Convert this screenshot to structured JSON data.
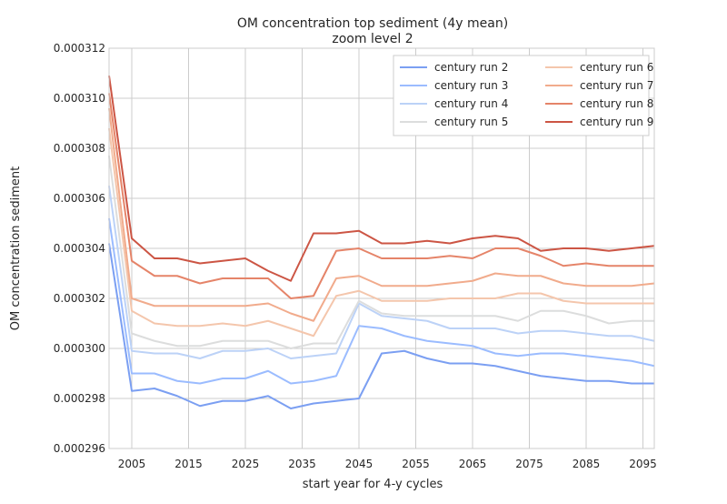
{
  "chart_data": {
    "type": "line",
    "title": "OM concentration top sediment (4y mean)",
    "subtitle": "zoom level 2",
    "xlabel": "start year for 4-y cycles",
    "ylabel": "OM concentration sediment",
    "xlim": [
      2001,
      2097
    ],
    "ylim": [
      0.000296,
      0.000312
    ],
    "x_ticks": [
      2005,
      2015,
      2025,
      2035,
      2045,
      2055,
      2065,
      2075,
      2085,
      2095
    ],
    "x_tick_labels": [
      "2005",
      "2015",
      "2025",
      "2035",
      "2045",
      "2055",
      "2065",
      "2075",
      "2085",
      "2095"
    ],
    "y_ticks": [
      0.000296,
      0.000298,
      0.0003,
      0.000302,
      0.000304,
      0.000306,
      0.000308,
      0.00031,
      0.000312
    ],
    "y_tick_labels": [
      "0.000296",
      "0.000298",
      "0.000300",
      "0.000302",
      "0.000304",
      "0.000306",
      "0.000308",
      "0.000310",
      "0.000312"
    ],
    "grid": true,
    "legend_position": "top-right",
    "x": [
      2001,
      2005,
      2009,
      2013,
      2017,
      2021,
      2025,
      2029,
      2033,
      2037,
      2041,
      2045,
      2049,
      2053,
      2057,
      2061,
      2065,
      2069,
      2073,
      2077,
      2081,
      2085,
      2089,
      2093,
      2097
    ],
    "series": [
      {
        "name": "century run 2",
        "color": "#7b9ff2",
        "values": [
          0.0003042,
          0.0002983,
          0.0002984,
          0.0002981,
          0.0002977,
          0.0002979,
          0.0002979,
          0.0002981,
          0.0002976,
          0.0002978,
          0.0002979,
          0.000298,
          0.0002998,
          0.0002999,
          0.0002996,
          0.0002994,
          0.0002994,
          0.0002993,
          0.0002991,
          0.0002989,
          0.0002988,
          0.0002987,
          0.0002987,
          0.0002986,
          0.0002986
        ]
      },
      {
        "name": "century run 3",
        "color": "#9bbcff",
        "values": [
          0.0003052,
          0.000299,
          0.000299,
          0.0002987,
          0.0002986,
          0.0002988,
          0.0002988,
          0.0002991,
          0.0002986,
          0.0002987,
          0.0002989,
          0.0003009,
          0.0003008,
          0.0003005,
          0.0003003,
          0.0003002,
          0.0003001,
          0.0002998,
          0.0002997,
          0.0002998,
          0.0002998,
          0.0002997,
          0.0002996,
          0.0002995,
          0.0002993
        ]
      },
      {
        "name": "century run 4",
        "color": "#bcd2f7",
        "values": [
          0.0003065,
          0.0002999,
          0.0002998,
          0.0002998,
          0.0002996,
          0.0002999,
          0.0002999,
          0.0003,
          0.0002996,
          0.0002997,
          0.0002998,
          0.0003018,
          0.0003013,
          0.0003012,
          0.0003011,
          0.0003008,
          0.0003008,
          0.0003008,
          0.0003006,
          0.0003007,
          0.0003007,
          0.0003006,
          0.0003005,
          0.0003005,
          0.0003003
        ]
      },
      {
        "name": "century run 5",
        "color": "#dcdddd",
        "values": [
          0.0003077,
          0.0003006,
          0.0003003,
          0.0003001,
          0.0003001,
          0.0003003,
          0.0003003,
          0.0003003,
          0.0003,
          0.0003002,
          0.0003002,
          0.0003019,
          0.0003014,
          0.0003013,
          0.0003013,
          0.0003013,
          0.0003013,
          0.0003013,
          0.0003011,
          0.0003015,
          0.0003015,
          0.0003013,
          0.000301,
          0.0003011,
          0.0003011
        ]
      },
      {
        "name": "century run 6",
        "color": "#f4c6ac",
        "values": [
          0.0003088,
          0.0003015,
          0.000301,
          0.0003009,
          0.0003009,
          0.000301,
          0.0003009,
          0.0003011,
          0.0003008,
          0.0003005,
          0.0003021,
          0.0003023,
          0.0003019,
          0.0003019,
          0.0003019,
          0.000302,
          0.000302,
          0.000302,
          0.0003022,
          0.0003022,
          0.0003019,
          0.0003018,
          0.0003018,
          0.0003018,
          0.0003018
        ]
      },
      {
        "name": "century run 7",
        "color": "#f1ab8c",
        "values": [
          0.0003096,
          0.000302,
          0.0003017,
          0.0003017,
          0.0003017,
          0.0003017,
          0.0003017,
          0.0003018,
          0.0003014,
          0.0003011,
          0.0003028,
          0.0003029,
          0.0003025,
          0.0003025,
          0.0003025,
          0.0003026,
          0.0003027,
          0.000303,
          0.0003029,
          0.0003029,
          0.0003026,
          0.0003025,
          0.0003025,
          0.0003025,
          0.0003026
        ]
      },
      {
        "name": "century run 8",
        "color": "#e58469",
        "values": [
          0.0003102,
          0.0003035,
          0.0003029,
          0.0003029,
          0.0003026,
          0.0003028,
          0.0003028,
          0.0003028,
          0.000302,
          0.0003021,
          0.0003039,
          0.000304,
          0.0003036,
          0.0003036,
          0.0003036,
          0.0003037,
          0.0003036,
          0.000304,
          0.000304,
          0.0003037,
          0.0003033,
          0.0003034,
          0.0003033,
          0.0003033,
          0.0003033
        ]
      },
      {
        "name": "century run 9",
        "color": "#cc5544",
        "values": [
          0.0003109,
          0.0003044,
          0.0003036,
          0.0003036,
          0.0003034,
          0.0003035,
          0.0003036,
          0.0003031,
          0.0003027,
          0.0003046,
          0.0003046,
          0.0003047,
          0.0003042,
          0.0003042,
          0.0003043,
          0.0003042,
          0.0003044,
          0.0003045,
          0.0003044,
          0.0003039,
          0.000304,
          0.000304,
          0.0003039,
          0.000304,
          0.0003041
        ]
      }
    ]
  }
}
